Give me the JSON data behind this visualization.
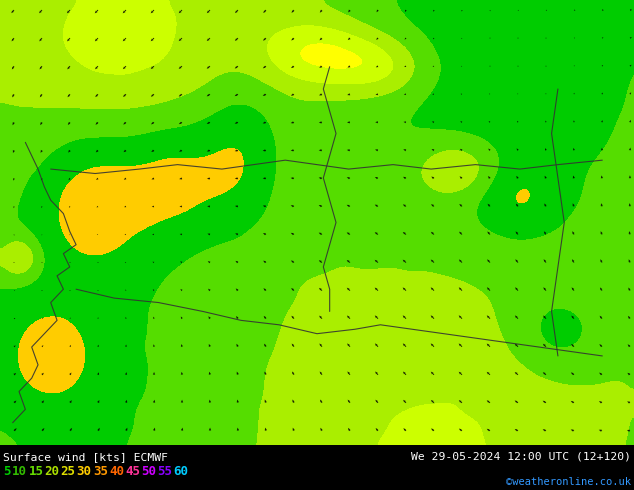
{
  "title_left": "Surface wind [kts] ECMWF",
  "title_right": "We 29-05-2024 12:00 UTC (12+120)",
  "credit": "©weatheronline.co.uk",
  "legend_values": [
    5,
    10,
    15,
    20,
    25,
    30,
    35,
    40,
    45,
    50,
    55,
    60
  ],
  "legend_colors": [
    "#00cc00",
    "#33bb00",
    "#66dd00",
    "#aadd00",
    "#dddd00",
    "#ffcc00",
    "#ff9900",
    "#ff6600",
    "#ff3399",
    "#cc00ff",
    "#8800ff",
    "#00ccff"
  ],
  "levels": [
    0,
    5,
    10,
    15,
    20,
    25,
    30,
    35,
    40,
    45,
    50,
    55,
    60
  ],
  "colors": [
    "#ffff00",
    "#ccff00",
    "#aaee00",
    "#55dd00",
    "#00cc00",
    "#ffcc00",
    "#ff9900",
    "#ff6600",
    "#ff3399",
    "#cc00ff",
    "#8800ff",
    "#00ccff"
  ],
  "figsize": [
    6.34,
    4.9
  ],
  "dpi": 100,
  "bg_color": "#000000"
}
